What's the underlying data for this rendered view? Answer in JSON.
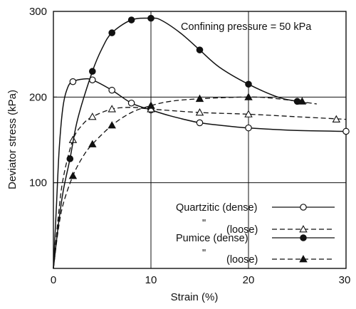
{
  "chart_data": {
    "type": "line",
    "title": "",
    "xlabel": "Strain (%)",
    "ylabel": "Deviator stress (kPa)",
    "xlim": [
      0,
      30
    ],
    "ylim": [
      0,
      300
    ],
    "x_ticks": [
      0,
      10,
      20,
      30
    ],
    "y_ticks": [
      100,
      200,
      300
    ],
    "gridlines": {
      "x": [
        10,
        20
      ],
      "y": [
        100,
        200
      ]
    },
    "annotation": "Confining pressure = 50 kPa",
    "legend_position": "bottom-right",
    "series": [
      {
        "name": "Quartzitic (dense)",
        "style": "solid",
        "marker": "open-circle",
        "markers": [
          [
            2,
            218
          ],
          [
            4,
            220
          ],
          [
            6,
            208
          ],
          [
            8,
            193
          ],
          [
            10,
            185
          ],
          [
            15,
            170
          ],
          [
            20,
            164
          ],
          [
            30,
            160
          ]
        ],
        "curve": [
          [
            0,
            0
          ],
          [
            0.3,
            70
          ],
          [
            0.6,
            140
          ],
          [
            1,
            190
          ],
          [
            1.5,
            212
          ],
          [
            2,
            218
          ],
          [
            3,
            221
          ],
          [
            4,
            220
          ],
          [
            6,
            208
          ],
          [
            8,
            193
          ],
          [
            10,
            185
          ],
          [
            12,
            178
          ],
          [
            15,
            170
          ],
          [
            18,
            166
          ],
          [
            20,
            164
          ],
          [
            25,
            161
          ],
          [
            30,
            160
          ]
        ]
      },
      {
        "name": "(loose)",
        "legend_text": "\"",
        "style": "dashed",
        "marker": "open-triangle",
        "markers": [
          [
            2,
            150
          ],
          [
            4,
            177
          ],
          [
            6,
            186
          ],
          [
            10,
            186
          ],
          [
            15,
            182
          ],
          [
            20,
            180
          ],
          [
            29,
            174
          ]
        ],
        "curve": [
          [
            0,
            0
          ],
          [
            0.5,
            60
          ],
          [
            1,
            105
          ],
          [
            2,
            150
          ],
          [
            3,
            168
          ],
          [
            4,
            177
          ],
          [
            6,
            186
          ],
          [
            8,
            188
          ],
          [
            10,
            186
          ],
          [
            15,
            182
          ],
          [
            20,
            180
          ],
          [
            25,
            177
          ],
          [
            30,
            174
          ]
        ]
      },
      {
        "name": "Pumice (dense)",
        "style": "solid",
        "marker": "filled-circle",
        "markers": [
          [
            1.7,
            128
          ],
          [
            4,
            230
          ],
          [
            6,
            275
          ],
          [
            8,
            290
          ],
          [
            10,
            292
          ],
          [
            15,
            255
          ],
          [
            20,
            215
          ],
          [
            25,
            195
          ]
        ],
        "curve": [
          [
            0,
            0
          ],
          [
            0.5,
            50
          ],
          [
            1,
            90
          ],
          [
            1.7,
            128
          ],
          [
            2.5,
            175
          ],
          [
            4,
            230
          ],
          [
            5,
            257
          ],
          [
            6,
            275
          ],
          [
            8,
            290
          ],
          [
            10,
            292
          ],
          [
            11,
            290
          ],
          [
            13,
            275
          ],
          [
            15,
            255
          ],
          [
            17,
            235
          ],
          [
            20,
            215
          ],
          [
            23,
            200
          ],
          [
            25,
            195
          ],
          [
            26,
            193
          ]
        ]
      },
      {
        "name": "(loose)",
        "legend_text": "\"",
        "style": "dashed",
        "marker": "filled-triangle",
        "markers": [
          [
            2,
            108
          ],
          [
            4,
            145
          ],
          [
            6,
            167
          ],
          [
            10,
            190
          ],
          [
            15,
            198
          ],
          [
            20,
            200
          ],
          [
            25.5,
            195
          ]
        ],
        "curve": [
          [
            0,
            0
          ],
          [
            0.5,
            45
          ],
          [
            1,
            75
          ],
          [
            2,
            108
          ],
          [
            3,
            130
          ],
          [
            4,
            145
          ],
          [
            6,
            167
          ],
          [
            8,
            182
          ],
          [
            10,
            190
          ],
          [
            12,
            195
          ],
          [
            15,
            198
          ],
          [
            20,
            200
          ],
          [
            23,
            198
          ],
          [
            27,
            192
          ]
        ]
      }
    ]
  }
}
